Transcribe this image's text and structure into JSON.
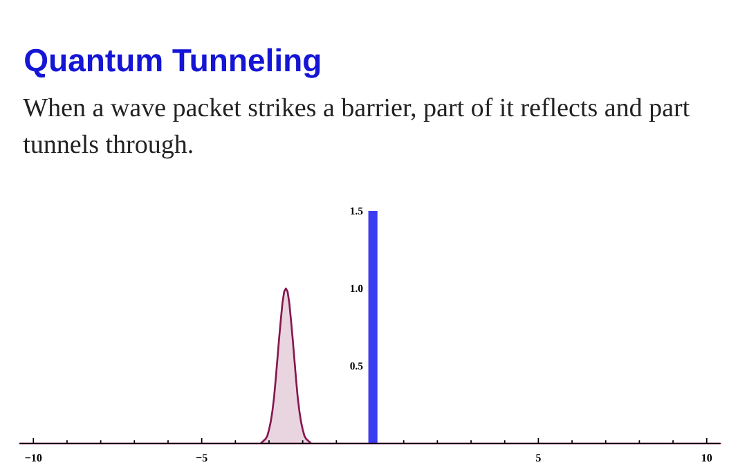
{
  "chart_data": {
    "type": "area",
    "title": "Quantum Tunneling",
    "subtitle": "When a wave packet strikes a barrier, part of it reflects and part tunnels through.",
    "xlim": [
      -10.4,
      10.4
    ],
    "ylim": [
      0,
      1.5
    ],
    "xticks": [
      {
        "value": -10,
        "label": "−10"
      },
      {
        "value": -9,
        "label": null
      },
      {
        "value": -8,
        "label": null
      },
      {
        "value": -7,
        "label": null
      },
      {
        "value": -6,
        "label": null
      },
      {
        "value": -5,
        "label": "−5"
      },
      {
        "value": -4,
        "label": null
      },
      {
        "value": -3,
        "label": null
      },
      {
        "value": -2,
        "label": null
      },
      {
        "value": -1,
        "label": null
      },
      {
        "value": 1,
        "label": null
      },
      {
        "value": 2,
        "label": null
      },
      {
        "value": 3,
        "label": null
      },
      {
        "value": 4,
        "label": null
      },
      5,
      {
        "value": 6,
        "label": null
      },
      {
        "value": 7,
        "label": null
      },
      {
        "value": 8,
        "label": null
      },
      {
        "value": 9,
        "label": null
      },
      10
    ],
    "yticks": [
      0.5,
      {
        "value": 1,
        "label": "1.0"
      },
      1.5
    ],
    "series": [
      {
        "color": "#86174f",
        "x": [
          -10.4,
          -3.4,
          -3.3,
          -3.25,
          -3.2,
          -3.15,
          -3.1,
          -3.05,
          -3.0,
          -2.95,
          -2.9,
          -2.85,
          -2.8,
          -2.75,
          -2.7,
          -2.65,
          -2.6,
          -2.55,
          -2.5,
          -2.45,
          -2.4,
          -2.35,
          -2.3,
          -2.25,
          -2.2,
          -2.15,
          -2.1,
          -2.05,
          -2.0,
          -1.95,
          -1.9,
          -1.85,
          -1.8,
          -1.75,
          -1.7,
          -1.6,
          10.4
        ],
        "values": [
          0,
          0,
          0,
          0,
          0.01,
          0.02,
          0.03,
          0.05,
          0.09,
          0.14,
          0.21,
          0.3,
          0.42,
          0.55,
          0.68,
          0.8,
          0.91,
          0.98,
          1.0,
          0.98,
          0.91,
          0.8,
          0.68,
          0.55,
          0.42,
          0.3,
          0.21,
          0.14,
          0.09,
          0.05,
          0.03,
          0.02,
          0.01,
          0,
          0,
          0,
          0
        ]
      }
    ],
    "bands": [
      {
        "axis": "x",
        "from": -0.05,
        "to": 0.22,
        "color": "#3b3bf2"
      }
    ]
  }
}
